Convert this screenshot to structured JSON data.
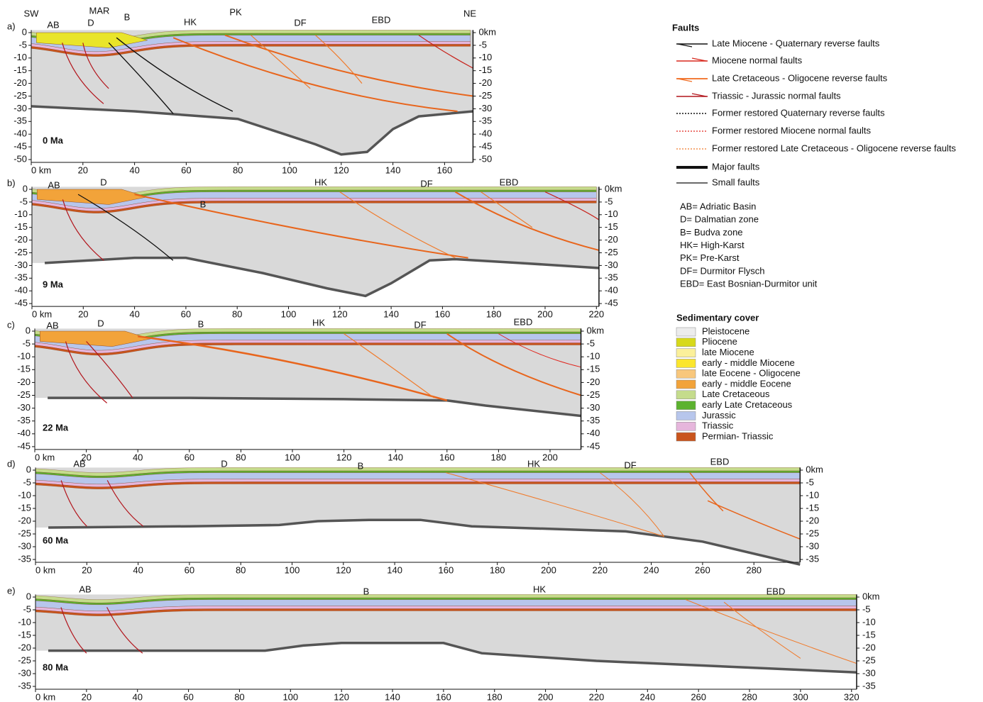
{
  "panels": [
    {
      "label": "a)",
      "age": "0 Ma",
      "regions": [
        "SW",
        "AB",
        "D",
        "MAR",
        "B",
        "HK",
        "PK",
        "DF",
        "EBD",
        "NE"
      ],
      "xticks": [
        {
          "value": 0,
          "label": "0 km"
        },
        20,
        40,
        60,
        80,
        100,
        120,
        140,
        160
      ],
      "yticks": [
        0,
        -5,
        -10,
        -15,
        -20,
        -25,
        -30,
        -35,
        -40,
        -45,
        -50
      ],
      "y2ticks": [
        {
          "value": 0,
          "label": "0km"
        },
        -5,
        -10,
        -15,
        -20,
        -25,
        -30,
        -35,
        -40,
        -45,
        -50
      ]
    },
    {
      "label": "b)",
      "age": "9 Ma",
      "regions": [
        "AB",
        "D",
        "B",
        "HK",
        "DF",
        "EBD"
      ],
      "xticks": [
        {
          "value": 0,
          "label": "0 km"
        },
        20,
        40,
        60,
        80,
        100,
        120,
        140,
        160,
        180,
        200,
        220
      ],
      "yticks": [
        0,
        -5,
        -10,
        -15,
        -20,
        -25,
        -30,
        -35,
        -40,
        -45
      ],
      "y2ticks": [
        {
          "value": 0,
          "label": "0km"
        },
        -5,
        -10,
        -15,
        -20,
        -25,
        -30,
        -35,
        -40,
        -45
      ]
    },
    {
      "label": "c)",
      "age": "22 Ma",
      "regions": [
        "AB",
        "D",
        "B",
        "HK",
        "DF",
        "EBD"
      ],
      "xticks": [
        {
          "value": 0,
          "label": "0 km"
        },
        20,
        40,
        60,
        80,
        100,
        120,
        140,
        160,
        180,
        200
      ],
      "yticks": [
        0,
        -5,
        -10,
        -15,
        -20,
        -25,
        -30,
        -35,
        -40,
        -45
      ],
      "y2ticks": [
        {
          "value": 0,
          "label": "0km"
        },
        -5,
        -10,
        -15,
        -20,
        -25,
        -30,
        -35,
        -40,
        -45
      ]
    },
    {
      "label": "d)",
      "age": "60 Ma",
      "regions": [
        "AB",
        "D",
        "B",
        "HK",
        "DF",
        "EBD"
      ],
      "xticks": [
        {
          "value": 0,
          "label": "0 km"
        },
        20,
        40,
        60,
        80,
        100,
        120,
        140,
        160,
        180,
        200,
        220,
        240,
        260,
        280
      ],
      "yticks": [
        0,
        -5,
        -10,
        -15,
        -20,
        -25,
        -30,
        -35
      ],
      "y2ticks": [
        {
          "value": 0,
          "label": "0km"
        },
        -5,
        -10,
        -15,
        -20,
        -25,
        -30,
        -35
      ]
    },
    {
      "label": "e)",
      "age": "80 Ma",
      "regions": [
        "AB",
        "B",
        "HK",
        "EBD"
      ],
      "xticks": [
        {
          "value": 0,
          "label": "0 km"
        },
        20,
        40,
        60,
        80,
        100,
        120,
        140,
        160,
        180,
        200,
        220,
        240,
        260,
        280,
        300,
        320
      ],
      "yticks": [
        0,
        -5,
        -10,
        -15,
        -20,
        -25,
        -30,
        -35
      ],
      "y2ticks": [
        {
          "value": 0,
          "label": "0km"
        },
        -5,
        -10,
        -15,
        -20,
        -25,
        -30,
        -35
      ]
    }
  ],
  "legend": {
    "faults": {
      "title": "Faults",
      "items": [
        {
          "label": "Late Miocene - Quaternary reverse faults",
          "color": "#111111"
        },
        {
          "label": "Miocene normal faults",
          "color": "#d8281e"
        },
        {
          "label": "Late Cretaceous - Oligocene reverse faults",
          "color": "#f06a1e"
        },
        {
          "label": "Triassic - Jurassic normal faults",
          "color": "#b2151c"
        },
        {
          "label": "Former restored Quaternary reverse faults",
          "color": "#111111"
        },
        {
          "label": "Former restored Miocene normal faults",
          "color": "#e0241c"
        },
        {
          "label": "Former restored Late Cretaceous - Oligocene reverse faults",
          "color": "#f07a2a"
        },
        {
          "label": "Major faults",
          "color": "#111111"
        },
        {
          "label": "Small faults",
          "color": "#111111"
        }
      ]
    },
    "abbreviations": [
      "AB= Adriatic Basin",
      "D= Dalmatian zone",
      "B= Budva zone",
      "HK= High-Karst",
      "PK= Pre-Karst",
      "DF= Durmitor Flysch",
      "EBD= East Bosnian-Durmitor unit"
    ],
    "sedimentary_cover": {
      "title": "Sedimentary cover",
      "items": [
        {
          "label": "Pleistocene",
          "color": "#ececec"
        },
        {
          "label": "Pliocene",
          "color": "#d7d91a"
        },
        {
          "label": "late Miocene",
          "color": "#fbf09a"
        },
        {
          "label": "early - middle Miocene",
          "color": "#fbe62d"
        },
        {
          "label": "late Eocene - Oligocene",
          "color": "#f8c77c"
        },
        {
          "label": "early - middle Eocene",
          "color": "#f2a33a"
        },
        {
          "label": "Late Cretaceous",
          "color": "#c5dc8c"
        },
        {
          "label": "early Late Cretaceous",
          "color": "#5cb22f"
        },
        {
          "label": "Jurassic",
          "color": "#b7c6ec"
        },
        {
          "label": "Triassic",
          "color": "#e6b6dc"
        },
        {
          "label": "Permian- Triassic",
          "color": "#c9541c"
        }
      ]
    }
  }
}
